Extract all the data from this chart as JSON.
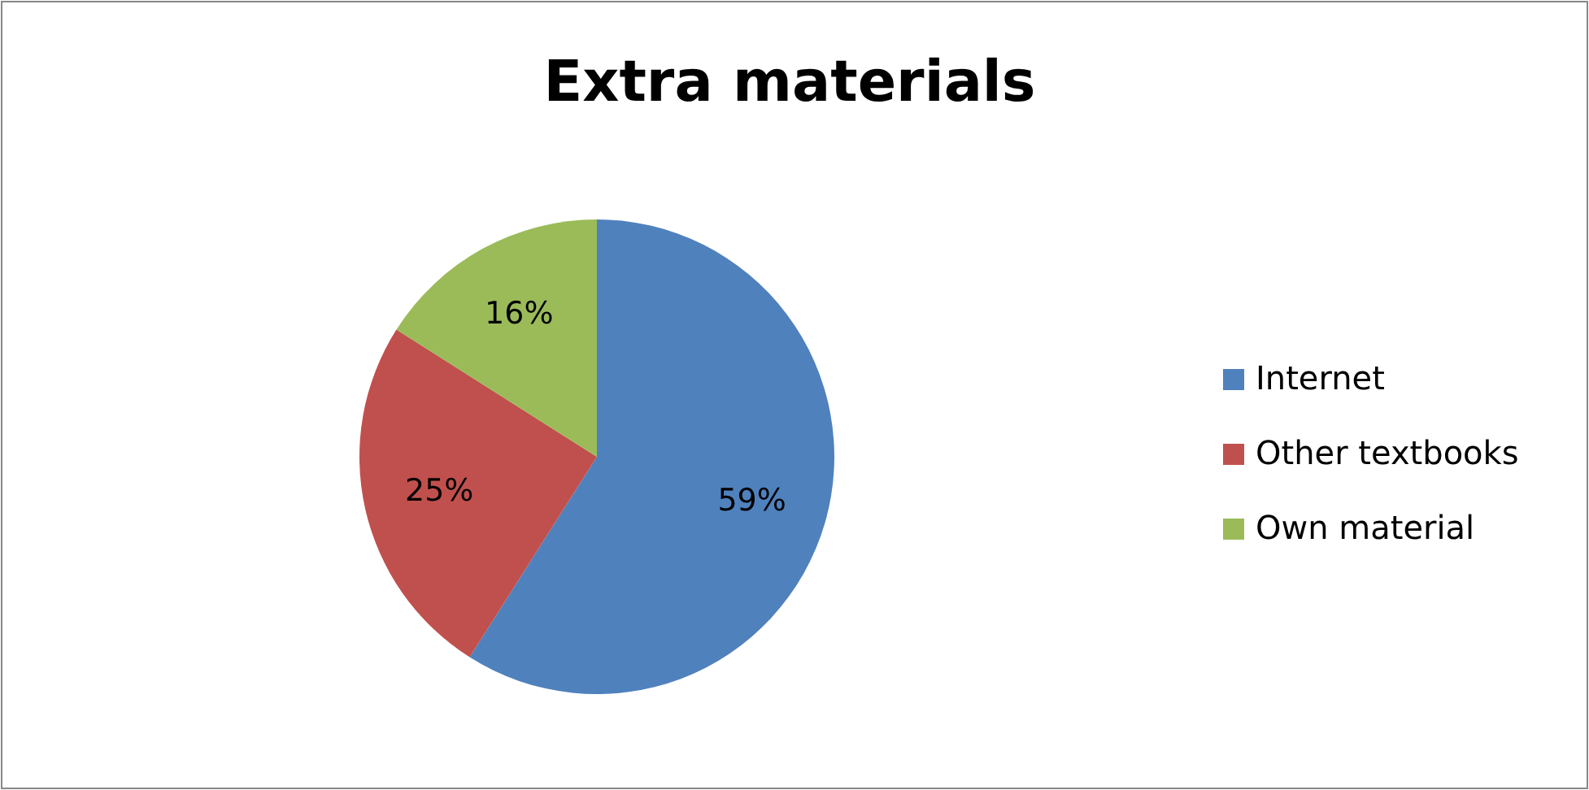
{
  "chart_data": {
    "type": "pie",
    "title": "Extra materials",
    "categories": [
      "Internet",
      "Other textbooks",
      "Own material"
    ],
    "values": [
      59,
      25,
      16
    ],
    "value_labels": [
      "59%",
      "25%",
      "16%"
    ],
    "colors": [
      "#4f81bd",
      "#c0504d",
      "#9bbb59"
    ],
    "legend": "right"
  }
}
